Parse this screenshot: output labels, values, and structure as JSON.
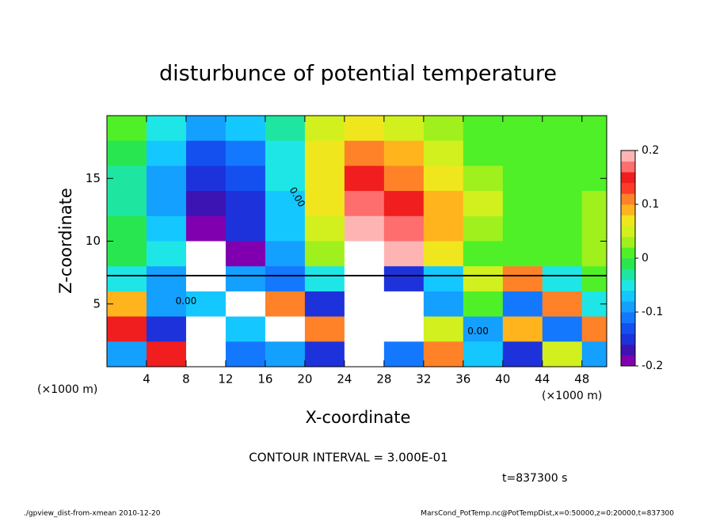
{
  "chart_data": {
    "type": "heatmap",
    "title": "disturbunce of potential temperature",
    "xlabel": "X-coordinate",
    "ylabel": "Z-coordinate",
    "x_unit": "(×1000 m)",
    "y_unit": "(×1000 m)",
    "contour_interval": "CONTOUR INTERVAL = 3.000E-01",
    "time_label": "t=837300 s",
    "footer_left": "./gpview_dist-from-xmean  2010-12-20",
    "footer_right": "MarsCond_PotTemp.nc@PotTempDist,x=0:50000,z=0:20000,t=837300",
    "contour_labels": [
      "0.00",
      "0.00",
      "0.00"
    ],
    "x": [
      2,
      6,
      10,
      14,
      18,
      22,
      26,
      30,
      34,
      38,
      42,
      46,
      50
    ],
    "y": [
      19,
      17,
      15,
      13,
      11,
      9,
      7,
      5,
      3,
      1
    ],
    "z": [
      [
        0.0,
        -0.05,
        -0.1,
        -0.08,
        -0.03,
        0.04,
        0.06,
        0.05,
        0.03,
        0.01,
        0.0,
        0.0,
        0.01
      ],
      [
        -0.02,
        -0.08,
        -0.14,
        -0.12,
        -0.05,
        0.06,
        0.1,
        0.08,
        0.05,
        0.02,
        0.01,
        0.0,
        0.01
      ],
      [
        -0.03,
        -0.1,
        -0.16,
        -0.14,
        -0.06,
        0.07,
        0.14,
        0.12,
        0.07,
        0.03,
        0.01,
        0.01,
        0.02
      ],
      [
        -0.03,
        -0.1,
        -0.18,
        -0.15,
        -0.07,
        0.06,
        0.16,
        0.15,
        0.08,
        0.04,
        0.01,
        0.02,
        0.03
      ],
      [
        -0.02,
        -0.08,
        -0.2,
        -0.16,
        -0.08,
        0.05,
        0.19,
        0.17,
        0.08,
        0.03,
        0.0,
        0.02,
        0.03
      ],
      [
        -0.02,
        -0.06,
        -0.25,
        -0.2,
        -0.1,
        0.03,
        0.25,
        0.2,
        0.06,
        0.02,
        0.01,
        0.02,
        0.03
      ],
      [
        -0.05,
        -0.1,
        -0.25,
        -0.1,
        -0.12,
        -0.05,
        -0.25,
        -0.15,
        -0.08,
        0.05,
        0.1,
        -0.05,
        0.0
      ],
      [
        0.08,
        -0.1,
        -0.08,
        -0.25,
        0.1,
        -0.15,
        -0.25,
        -0.25,
        -0.1,
        0.0,
        -0.12,
        0.12,
        -0.05
      ],
      [
        0.15,
        -0.15,
        -0.25,
        -0.08,
        -0.25,
        0.12,
        -0.25,
        -0.25,
        0.05,
        -0.1,
        0.08,
        -0.12,
        0.1
      ],
      [
        -0.1,
        0.15,
        -0.25,
        -0.12,
        -0.1,
        -0.15,
        -0.25,
        -0.12,
        0.12,
        -0.08,
        -0.15,
        0.05,
        -0.1
      ]
    ],
    "xlim": [
      0,
      50.5
    ],
    "ylim": [
      0,
      20
    ],
    "xticks": [
      4,
      8,
      12,
      16,
      20,
      24,
      28,
      32,
      36,
      40,
      44,
      48
    ],
    "yticks": [
      5,
      10,
      15
    ],
    "clim": [
      -0.2,
      0.2
    ],
    "cticks": [
      -0.2,
      -0.1,
      0,
      0.1,
      0.2
    ],
    "colors": [
      "#8000b0",
      "#3c14b4",
      "#1e32dc",
      "#1450f0",
      "#1478ff",
      "#14a0ff",
      "#14c8ff",
      "#1ee6e6",
      "#1ee6a0",
      "#28e650",
      "#50f028",
      "#a0f01e",
      "#d2f01e",
      "#f0e61e",
      "#ffb41e",
      "#ff8228",
      "#ff3c28",
      "#f01e1e",
      "#ff6e6e",
      "#ffb4b4"
    ],
    "out_of_range_color": "#ffffff"
  }
}
